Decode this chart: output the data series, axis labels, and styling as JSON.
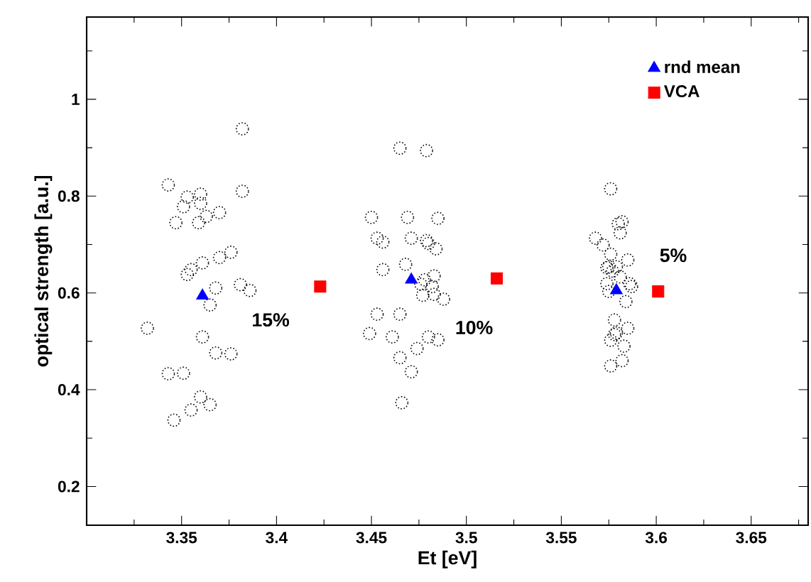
{
  "chart_data": {
    "type": "scatter",
    "xlabel": "Et [eV]",
    "ylabel": "optical strength [a.u.]",
    "xlim": [
      3.3,
      3.68
    ],
    "ylim": [
      0.12,
      1.17
    ],
    "xticks": [
      {
        "value": 3.325,
        "label": null
      },
      3.35,
      {
        "value": 3.375,
        "label": null
      },
      3.4,
      {
        "value": 3.425,
        "label": null
      },
      3.45,
      {
        "value": 3.475,
        "label": null
      },
      3.5,
      {
        "value": 3.525,
        "label": null
      },
      3.55,
      {
        "value": 3.575,
        "label": null
      },
      3.6,
      {
        "value": 3.625,
        "label": null
      },
      3.65,
      {
        "value": 3.675,
        "label": null
      }
    ],
    "yticks": [
      0.2,
      {
        "value": 0.3,
        "label": null
      },
      0.4,
      {
        "value": 0.5,
        "label": null
      },
      0.6,
      {
        "value": 0.7,
        "label": null
      },
      0.8,
      {
        "value": 0.9,
        "label": null
      },
      1,
      {
        "value": 1.1,
        "label": null
      }
    ],
    "legend": "top right",
    "grid": false,
    "series": [
      {
        "color": "#000000",
        "marker": "circle",
        "x": [
          3.332,
          3.343,
          3.346,
          3.343,
          3.347,
          3.351,
          3.353,
          3.351,
          3.353,
          3.355,
          3.355,
          3.359,
          3.36,
          3.36,
          3.363,
          3.361,
          3.36,
          3.361,
          3.365,
          3.365,
          3.368,
          3.37,
          3.37,
          3.368,
          3.376,
          3.376,
          3.382,
          3.382,
          3.381,
          3.386,
          3.449,
          3.45,
          3.453,
          3.456,
          3.453,
          3.456,
          3.461,
          3.465,
          3.465,
          3.465,
          3.466,
          3.468,
          3.469,
          3.471,
          3.471,
          3.474,
          3.476,
          3.477,
          3.478,
          3.479,
          3.479,
          3.48,
          3.48,
          3.482,
          3.483,
          3.483,
          3.484,
          3.485,
          3.485,
          3.488,
          3.568,
          3.572,
          3.574,
          3.574,
          3.575,
          3.576,
          3.575,
          3.576,
          3.576,
          3.576,
          3.577,
          3.578,
          3.578,
          3.579,
          3.579,
          3.58,
          3.581,
          3.582,
          3.581,
          3.582,
          3.583,
          3.584,
          3.585,
          3.585,
          3.586,
          3.587
        ],
        "values": [
          0.527,
          0.823,
          0.337,
          0.433,
          0.745,
          0.778,
          0.798,
          0.434,
          0.638,
          0.648,
          0.358,
          0.745,
          0.804,
          0.785,
          0.758,
          0.662,
          0.385,
          0.509,
          0.369,
          0.575,
          0.61,
          0.673,
          0.766,
          0.476,
          0.684,
          0.474,
          0.939,
          0.81,
          0.617,
          0.605,
          0.516,
          0.756,
          0.713,
          0.705,
          0.556,
          0.648,
          0.509,
          0.899,
          0.466,
          0.556,
          0.373,
          0.659,
          0.756,
          0.713,
          0.437,
          0.485,
          0.618,
          0.595,
          0.627,
          0.894,
          0.708,
          0.702,
          0.509,
          0.613,
          0.597,
          0.635,
          0.691,
          0.754,
          0.503,
          0.587,
          0.713,
          0.699,
          0.652,
          0.619,
          0.603,
          0.502,
          0.654,
          0.815,
          0.68,
          0.449,
          0.645,
          0.544,
          0.514,
          0.654,
          0.517,
          0.743,
          0.724,
          0.747,
          0.633,
          0.46,
          0.49,
          0.582,
          0.668,
          0.527,
          0.619,
          0.613
        ]
      },
      {
        "name": "rnd mean",
        "color": "#0000ff",
        "marker": "triangle",
        "x": [
          3.361,
          3.471,
          3.579
        ],
        "values": [
          0.594,
          0.627,
          0.605
        ]
      },
      {
        "name": "VCA",
        "color": "#ff0000",
        "marker": "square",
        "x": [
          3.423,
          3.516,
          3.601
        ],
        "values": [
          0.613,
          0.63,
          0.603
        ]
      }
    ],
    "annotations": [
      "15%",
      "10%",
      "5%"
    ]
  }
}
